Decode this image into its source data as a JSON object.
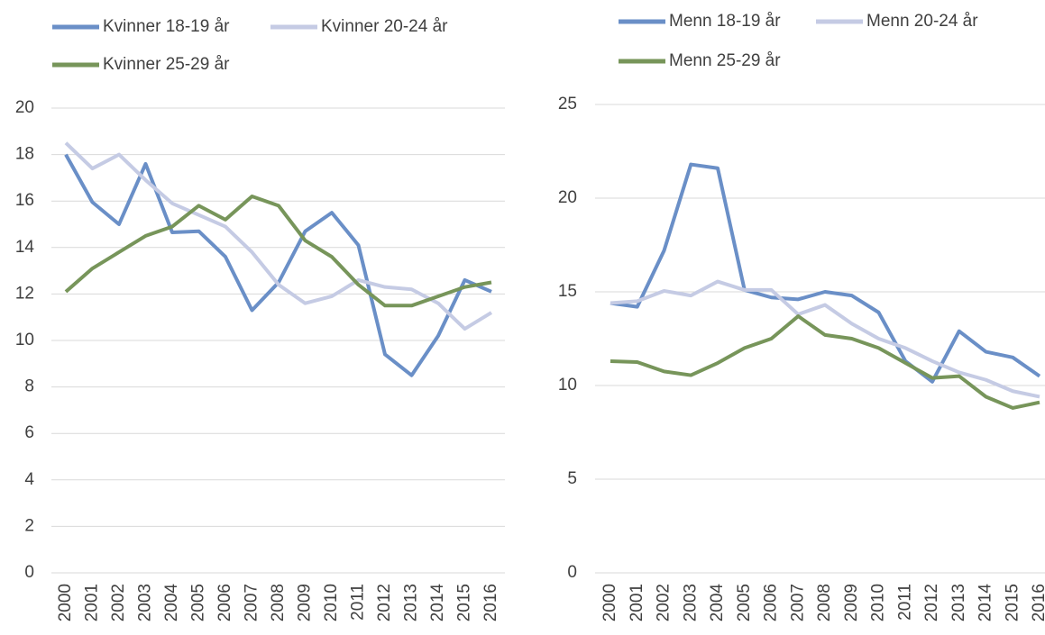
{
  "chart_data": [
    {
      "type": "line",
      "categories": [
        "2000",
        "2001",
        "2002",
        "2003",
        "2004",
        "2005",
        "2006",
        "2007",
        "2008",
        "2009",
        "2010",
        "2011",
        "2012",
        "2013",
        "2014",
        "2015",
        "2016"
      ],
      "series": [
        {
          "name": "Kvinner 18-19 år",
          "color": "#6a8fc7",
          "values": [
            18.0,
            15.95,
            15.0,
            17.6,
            14.65,
            14.7,
            13.6,
            11.3,
            12.5,
            14.7,
            15.5,
            14.1,
            9.4,
            8.5,
            10.2,
            12.6,
            12.1
          ]
        },
        {
          "name": "Kvinner 20-24 år",
          "color": "#c5cbe4",
          "values": [
            18.5,
            17.4,
            18.0,
            16.9,
            15.9,
            15.4,
            14.9,
            13.8,
            12.4,
            11.6,
            11.9,
            12.6,
            12.3,
            12.2,
            11.6,
            10.5,
            11.2
          ]
        },
        {
          "name": "Kvinner 25-29 år",
          "color": "#77955a",
          "values": [
            12.1,
            13.1,
            13.8,
            14.5,
            14.9,
            15.8,
            15.2,
            16.2,
            15.8,
            14.3,
            13.6,
            12.4,
            11.5,
            11.5,
            11.9,
            12.3,
            12.5
          ]
        }
      ],
      "ylim": [
        0,
        20
      ],
      "yticks": [
        0,
        2,
        4,
        6,
        8,
        10,
        12,
        14,
        16,
        18,
        20
      ],
      "grid": true
    },
    {
      "type": "line",
      "categories": [
        "2000",
        "2001",
        "2002",
        "2003",
        "2004",
        "2005",
        "2006",
        "2007",
        "2008",
        "2009",
        "2010",
        "2011",
        "2012",
        "2013",
        "2014",
        "2015",
        "2016"
      ],
      "series": [
        {
          "name": "Menn 18-19 år",
          "color": "#6a8fc7",
          "values": [
            14.4,
            14.2,
            17.2,
            21.8,
            21.6,
            15.1,
            14.7,
            14.6,
            15.0,
            14.8,
            13.9,
            11.3,
            10.2,
            12.9,
            11.8,
            11.5,
            10.5
          ]
        },
        {
          "name": "Menn 20-24 år",
          "color": "#c5cbe4",
          "values": [
            14.4,
            14.5,
            15.05,
            14.8,
            15.55,
            15.1,
            15.1,
            13.8,
            14.3,
            13.3,
            12.5,
            12.0,
            11.3,
            10.7,
            10.3,
            9.7,
            9.4
          ]
        },
        {
          "name": "Menn 25-29 år",
          "color": "#77955a",
          "values": [
            11.3,
            11.25,
            10.75,
            10.55,
            11.2,
            12.0,
            12.5,
            13.7,
            12.7,
            12.5,
            12.0,
            11.2,
            10.4,
            10.5,
            9.4,
            8.8,
            9.1
          ]
        }
      ],
      "ylim": [
        0,
        25
      ],
      "yticks": [
        0,
        5,
        10,
        15,
        20,
        25
      ],
      "grid": true
    }
  ]
}
